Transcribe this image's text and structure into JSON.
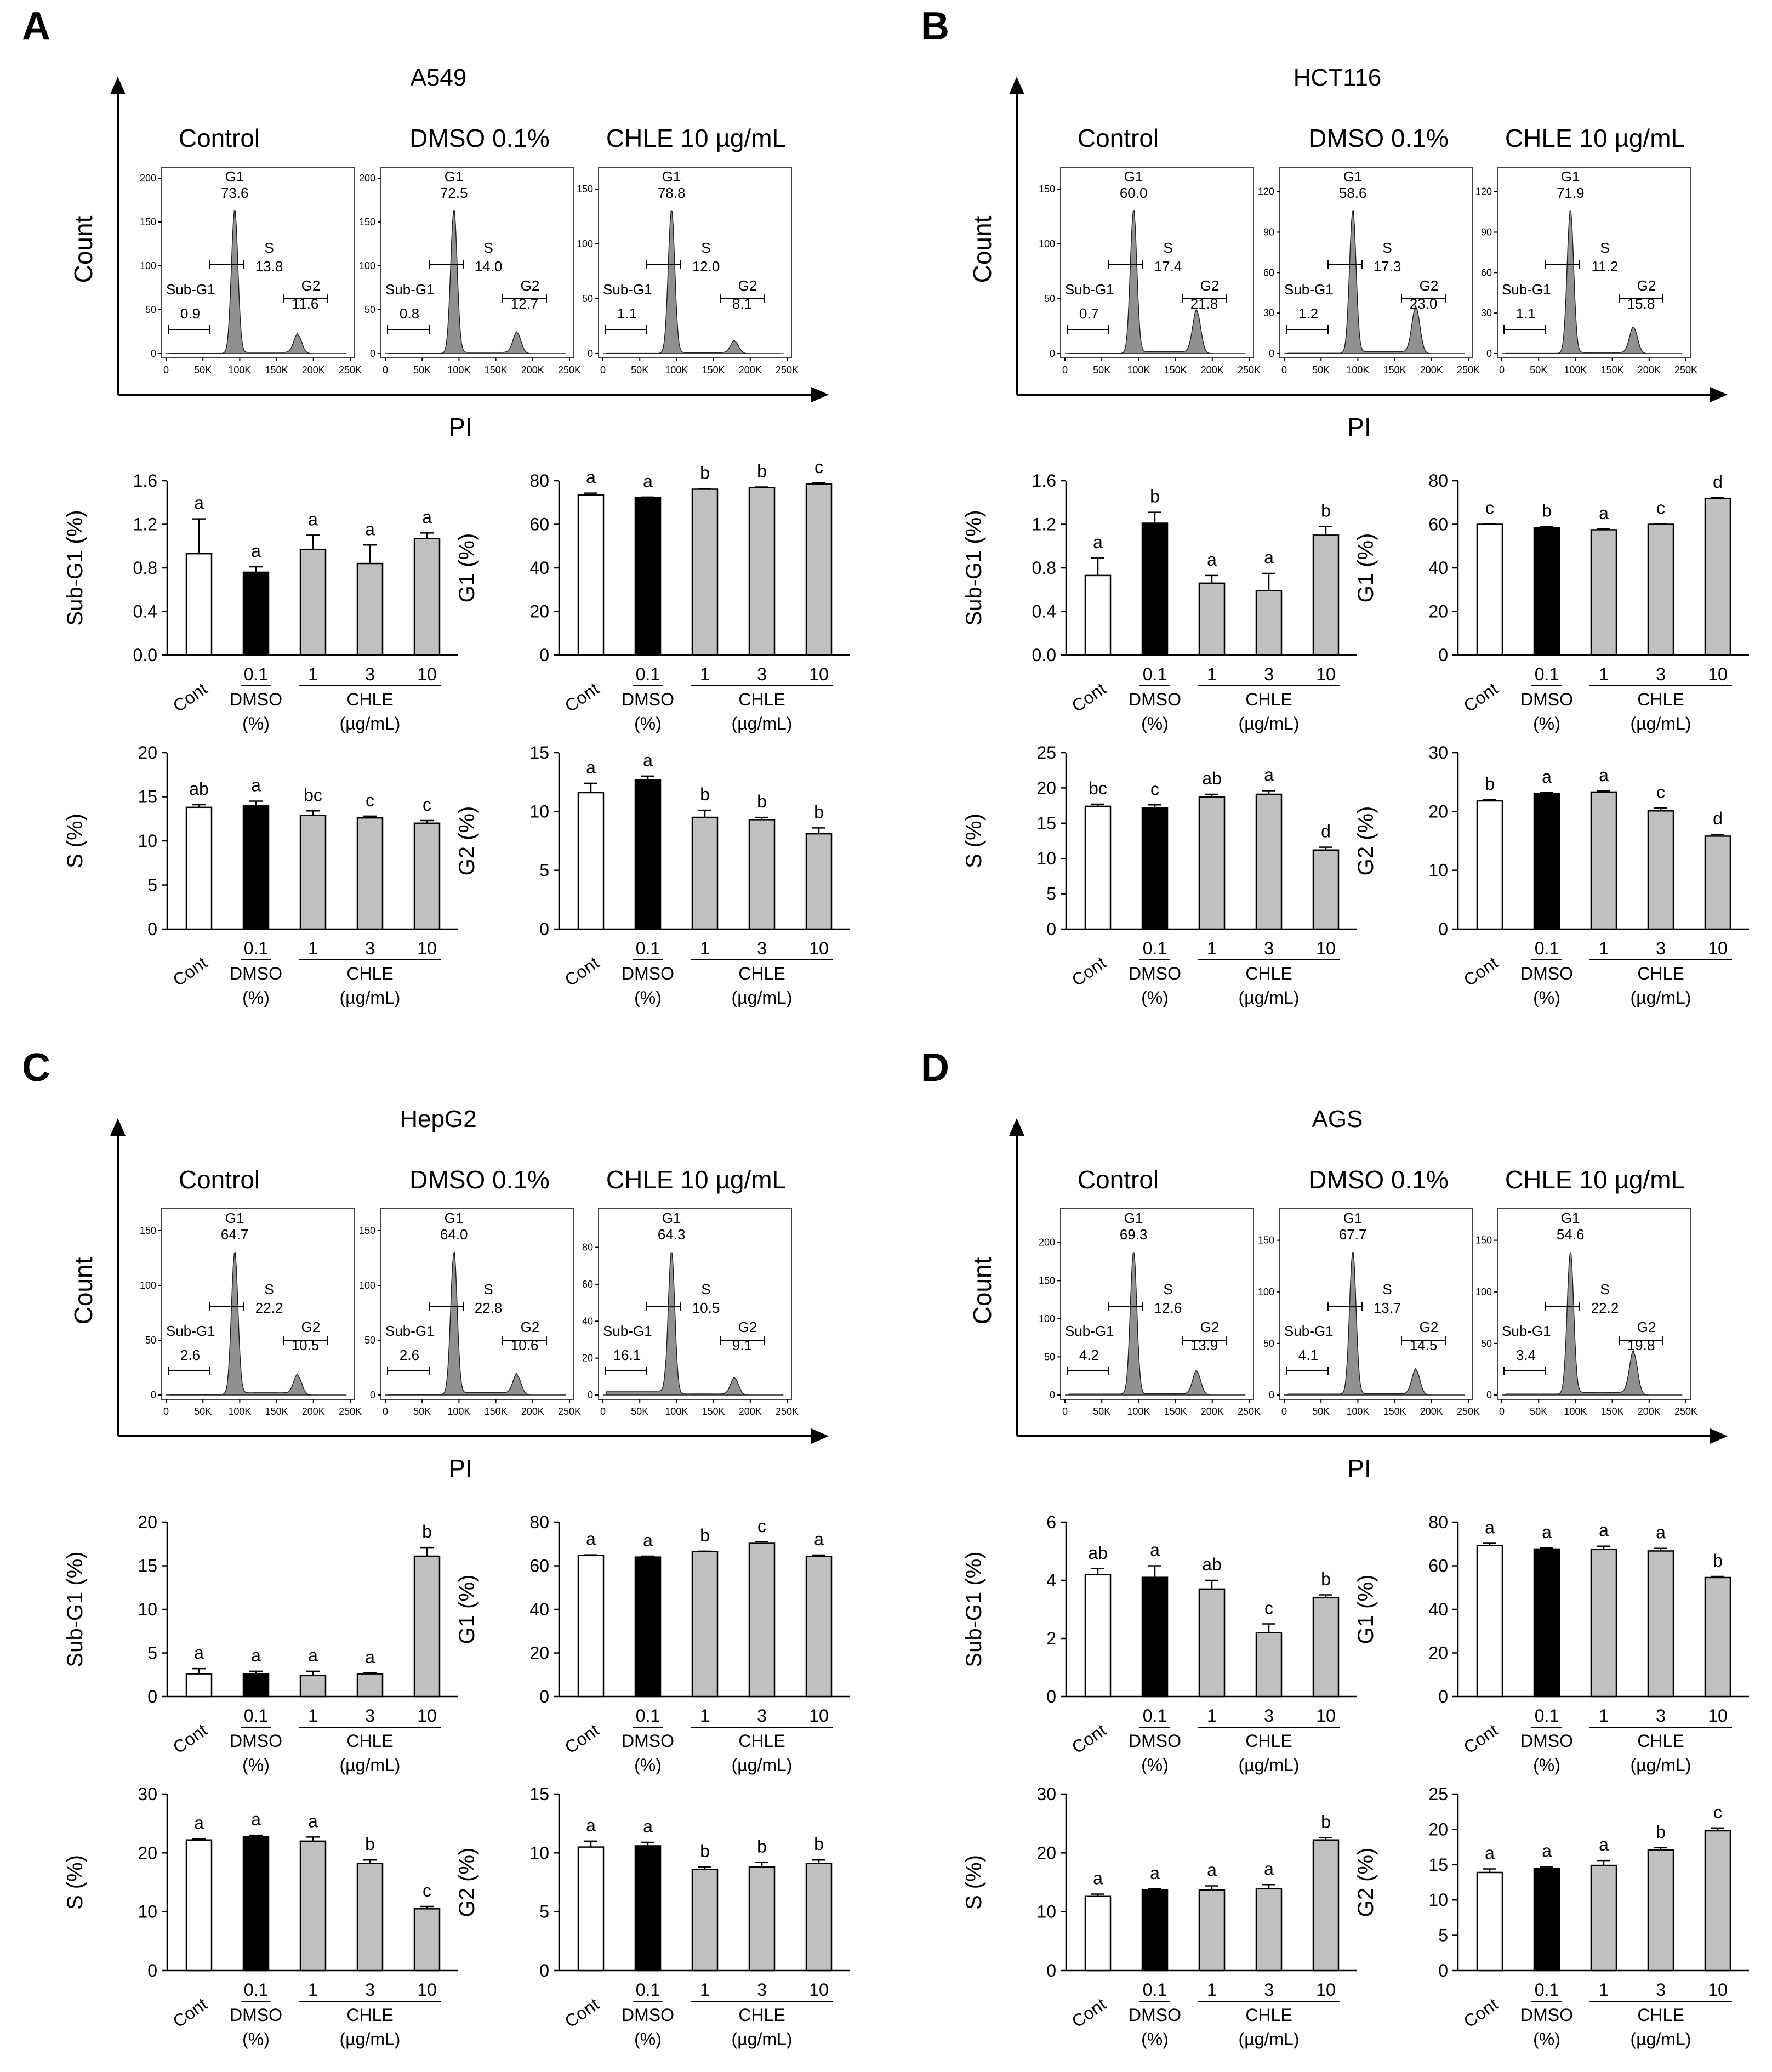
{
  "colors": {
    "control": "#ffffff",
    "dmso": "#000000",
    "chle": "#c0c0c0",
    "histogram": "#909090",
    "axis": "#000000"
  },
  "common": {
    "histo_headers": [
      "Control",
      "DMSO 0.1%",
      "CHLE 10 µg/mL"
    ],
    "flow_xticks": [
      "0",
      "50K",
      "100K",
      "150K",
      "200K",
      "250K"
    ],
    "gate_labels": {
      "subg1": "Sub-G1",
      "g1": "G1",
      "s": "S",
      "g2": "G2"
    },
    "xlabel": "PI",
    "ylabel": "Count",
    "categories": [
      "Cont",
      "0.1",
      "1",
      "3",
      "10"
    ],
    "dmso_label": "DMSO",
    "dmso_unit": "(%)",
    "chle_label": "CHLE",
    "chle_unit": "(µg/mL)"
  },
  "chart_data": [
    {
      "panel": "A",
      "cell_line": "A549",
      "type": "bar",
      "histograms": [
        {
          "yticks": [
            "0",
            "50",
            "100",
            "150",
            "200"
          ],
          "ymax": 200,
          "g1": "73.6",
          "s": "13.8",
          "g2": "11.6",
          "subg1": "0.9"
        },
        {
          "yticks": [
            "0",
            "50",
            "100",
            "150",
            "200"
          ],
          "ymax": 200,
          "g1": "72.5",
          "s": "14.0",
          "g2": "12.7",
          "subg1": "0.8"
        },
        {
          "yticks": [
            "0",
            "50",
            "100",
            "150"
          ],
          "ymax": 160,
          "g1": "78.8",
          "s": "12.0",
          "g2": "8.1",
          "subg1": "1.1"
        }
      ],
      "bars": [
        {
          "ylabel": "Sub-G1 (%)",
          "ylim": [
            0,
            1.6
          ],
          "yticks": [
            "0.0",
            "0.4",
            "0.8",
            "1.2",
            "1.6"
          ],
          "values": [
            0.93,
            0.76,
            0.97,
            0.84,
            1.07
          ],
          "errors": [
            0.32,
            0.05,
            0.13,
            0.17,
            0.05
          ],
          "letters": [
            "a",
            "a",
            "a",
            "a",
            "a"
          ]
        },
        {
          "ylabel": "G1 (%)",
          "ylim": [
            0,
            80
          ],
          "yticks": [
            "0",
            "20",
            "40",
            "60",
            "80"
          ],
          "values": [
            73.5,
            72.2,
            76.1,
            76.8,
            78.5
          ],
          "errors": [
            0.8,
            0.3,
            0.3,
            0.3,
            0.5
          ],
          "letters": [
            "a",
            "a",
            "b",
            "b",
            "c"
          ]
        },
        {
          "ylabel": "S (%)",
          "ylim": [
            0,
            20
          ],
          "yticks": [
            "0",
            "5",
            "10",
            "15",
            "20"
          ],
          "values": [
            13.8,
            14.0,
            12.9,
            12.6,
            12.0
          ],
          "errors": [
            0.3,
            0.5,
            0.5,
            0.2,
            0.3
          ],
          "letters": [
            "ab",
            "a",
            "bc",
            "c",
            "c"
          ]
        },
        {
          "ylabel": "G2 (%)",
          "ylim": [
            0,
            15
          ],
          "yticks": [
            "0",
            "5",
            "10",
            "15"
          ],
          "values": [
            11.6,
            12.7,
            9.5,
            9.3,
            8.1
          ],
          "errors": [
            0.8,
            0.3,
            0.6,
            0.2,
            0.5
          ],
          "letters": [
            "a",
            "a",
            "b",
            "b",
            "b"
          ]
        }
      ]
    },
    {
      "panel": "B",
      "cell_line": "HCT116",
      "type": "bar",
      "histograms": [
        {
          "yticks": [
            "0",
            "50",
            "100",
            "150"
          ],
          "ymax": 160,
          "g1": "60.0",
          "s": "17.4",
          "g2": "21.8",
          "subg1": "0.7"
        },
        {
          "yticks": [
            "0",
            "30",
            "60",
            "90",
            "120"
          ],
          "ymax": 130,
          "g1": "58.6",
          "s": "17.3",
          "g2": "23.0",
          "subg1": "1.2"
        },
        {
          "yticks": [
            "0",
            "30",
            "60",
            "90",
            "120"
          ],
          "ymax": 130,
          "g1": "71.9",
          "s": "11.2",
          "g2": "15.8",
          "subg1": "1.1"
        }
      ],
      "bars": [
        {
          "ylabel": "Sub-G1 (%)",
          "ylim": [
            0,
            1.6
          ],
          "yticks": [
            "0.0",
            "0.4",
            "0.8",
            "1.2",
            "1.6"
          ],
          "values": [
            0.73,
            1.21,
            0.66,
            0.59,
            1.1
          ],
          "errors": [
            0.16,
            0.1,
            0.07,
            0.16,
            0.08
          ],
          "letters": [
            "a",
            "b",
            "a",
            "a",
            "b"
          ]
        },
        {
          "ylabel": "G1 (%)",
          "ylim": [
            0,
            80
          ],
          "yticks": [
            "0",
            "20",
            "40",
            "60",
            "80"
          ],
          "values": [
            60.0,
            58.5,
            57.5,
            60.0,
            71.9
          ],
          "errors": [
            0.3,
            0.5,
            0.4,
            0.3,
            0.3
          ],
          "letters": [
            "c",
            "b",
            "a",
            "c",
            "d"
          ]
        },
        {
          "ylabel": "S (%)",
          "ylim": [
            0,
            25
          ],
          "yticks": [
            "0",
            "5",
            "10",
            "15",
            "20",
            "25"
          ],
          "values": [
            17.4,
            17.2,
            18.7,
            19.1,
            11.2
          ],
          "errors": [
            0.3,
            0.4,
            0.4,
            0.5,
            0.4
          ],
          "letters": [
            "bc",
            "c",
            "ab",
            "a",
            "d"
          ]
        },
        {
          "ylabel": "G2 (%)",
          "ylim": [
            0,
            30
          ],
          "yticks": [
            "0",
            "10",
            "20",
            "30"
          ],
          "values": [
            21.8,
            23.0,
            23.3,
            20.1,
            15.8
          ],
          "errors": [
            0.2,
            0.2,
            0.2,
            0.5,
            0.3
          ],
          "letters": [
            "b",
            "a",
            "a",
            "c",
            "d"
          ]
        }
      ]
    },
    {
      "panel": "C",
      "cell_line": "HepG2",
      "type": "bar",
      "histograms": [
        {
          "yticks": [
            "0",
            "50",
            "100",
            "150"
          ],
          "ymax": 160,
          "g1": "64.7",
          "s": "22.2",
          "g2": "10.5",
          "subg1": "2.6"
        },
        {
          "yticks": [
            "0",
            "50",
            "100",
            "150"
          ],
          "ymax": 160,
          "g1": "64.0",
          "s": "22.8",
          "g2": "10.6",
          "subg1": "2.6"
        },
        {
          "yticks": [
            "0",
            "20",
            "40",
            "60",
            "80"
          ],
          "ymax": 95,
          "g1": "64.3",
          "s": "10.5",
          "g2": "9.1",
          "subg1": "16.1"
        }
      ],
      "bars": [
        {
          "ylabel": "Sub-G1 (%)",
          "ylim": [
            0,
            20
          ],
          "yticks": [
            "0",
            "5",
            "10",
            "15",
            "20"
          ],
          "values": [
            2.6,
            2.6,
            2.4,
            2.6,
            16.1
          ],
          "errors": [
            0.6,
            0.3,
            0.5,
            0.1,
            1.0
          ],
          "letters": [
            "a",
            "a",
            "a",
            "a",
            "b"
          ]
        },
        {
          "ylabel": "G1 (%)",
          "ylim": [
            0,
            80
          ],
          "yticks": [
            "0",
            "20",
            "40",
            "60",
            "80"
          ],
          "values": [
            64.7,
            64.0,
            66.5,
            70.3,
            64.3
          ],
          "errors": [
            0.3,
            0.4,
            0.2,
            0.7,
            0.6
          ],
          "letters": [
            "a",
            "a",
            "b",
            "c",
            "a"
          ]
        },
        {
          "ylabel": "S (%)",
          "ylim": [
            0,
            30
          ],
          "yticks": [
            "0",
            "10",
            "20",
            "30"
          ],
          "values": [
            22.2,
            22.8,
            22.0,
            18.2,
            10.5
          ],
          "errors": [
            0.2,
            0.2,
            0.7,
            0.6,
            0.4
          ],
          "letters": [
            "a",
            "a",
            "a",
            "b",
            "c"
          ]
        },
        {
          "ylabel": "G2 (%)",
          "ylim": [
            0,
            15
          ],
          "yticks": [
            "0",
            "5",
            "10",
            "15"
          ],
          "values": [
            10.5,
            10.6,
            8.6,
            8.8,
            9.1
          ],
          "errors": [
            0.5,
            0.3,
            0.2,
            0.4,
            0.3
          ],
          "letters": [
            "a",
            "a",
            "b",
            "b",
            "b"
          ]
        }
      ]
    },
    {
      "panel": "D",
      "cell_line": "AGS",
      "type": "bar",
      "histograms": [
        {
          "yticks": [
            "0",
            "50",
            "100",
            "150",
            "200"
          ],
          "ymax": 230,
          "g1": "69.3",
          "s": "12.6",
          "g2": "13.9",
          "subg1": "4.2"
        },
        {
          "yticks": [
            "0",
            "50",
            "100",
            "150"
          ],
          "ymax": 170,
          "g1": "67.7",
          "s": "13.7",
          "g2": "14.5",
          "subg1": "4.1"
        },
        {
          "yticks": [
            "0",
            "50",
            "100",
            "150"
          ],
          "ymax": 170,
          "g1": "54.6",
          "s": "22.2",
          "g2": "19.8",
          "subg1": "3.4"
        }
      ],
      "bars": [
        {
          "ylabel": "Sub-G1 (%)",
          "ylim": [
            0,
            6
          ],
          "yticks": [
            "0",
            "2",
            "4",
            "6"
          ],
          "values": [
            4.2,
            4.1,
            3.7,
            2.2,
            3.4
          ],
          "errors": [
            0.2,
            0.4,
            0.3,
            0.3,
            0.1
          ],
          "letters": [
            "ab",
            "a",
            "ab",
            "c",
            "b"
          ]
        },
        {
          "ylabel": "G1 (%)",
          "ylim": [
            0,
            80
          ],
          "yticks": [
            "0",
            "20",
            "40",
            "60",
            "80"
          ],
          "values": [
            69.3,
            67.7,
            67.5,
            66.8,
            54.6
          ],
          "errors": [
            1.0,
            0.5,
            1.5,
            1.2,
            0.5
          ],
          "letters": [
            "a",
            "a",
            "a",
            "a",
            "b"
          ]
        },
        {
          "ylabel": "S (%)",
          "ylim": [
            0,
            30
          ],
          "yticks": [
            "0",
            "10",
            "20",
            "30"
          ],
          "values": [
            12.6,
            13.7,
            13.7,
            13.9,
            22.2
          ],
          "errors": [
            0.4,
            0.2,
            0.7,
            0.7,
            0.4
          ],
          "letters": [
            "a",
            "a",
            "a",
            "a",
            "b"
          ]
        },
        {
          "ylabel": "G2 (%)",
          "ylim": [
            0,
            25
          ],
          "yticks": [
            "0",
            "5",
            "10",
            "15",
            "20",
            "25"
          ],
          "values": [
            13.9,
            14.5,
            14.9,
            17.1,
            19.8
          ],
          "errors": [
            0.5,
            0.2,
            0.7,
            0.3,
            0.4
          ],
          "letters": [
            "a",
            "a",
            "a",
            "b",
            "c"
          ]
        }
      ]
    }
  ]
}
